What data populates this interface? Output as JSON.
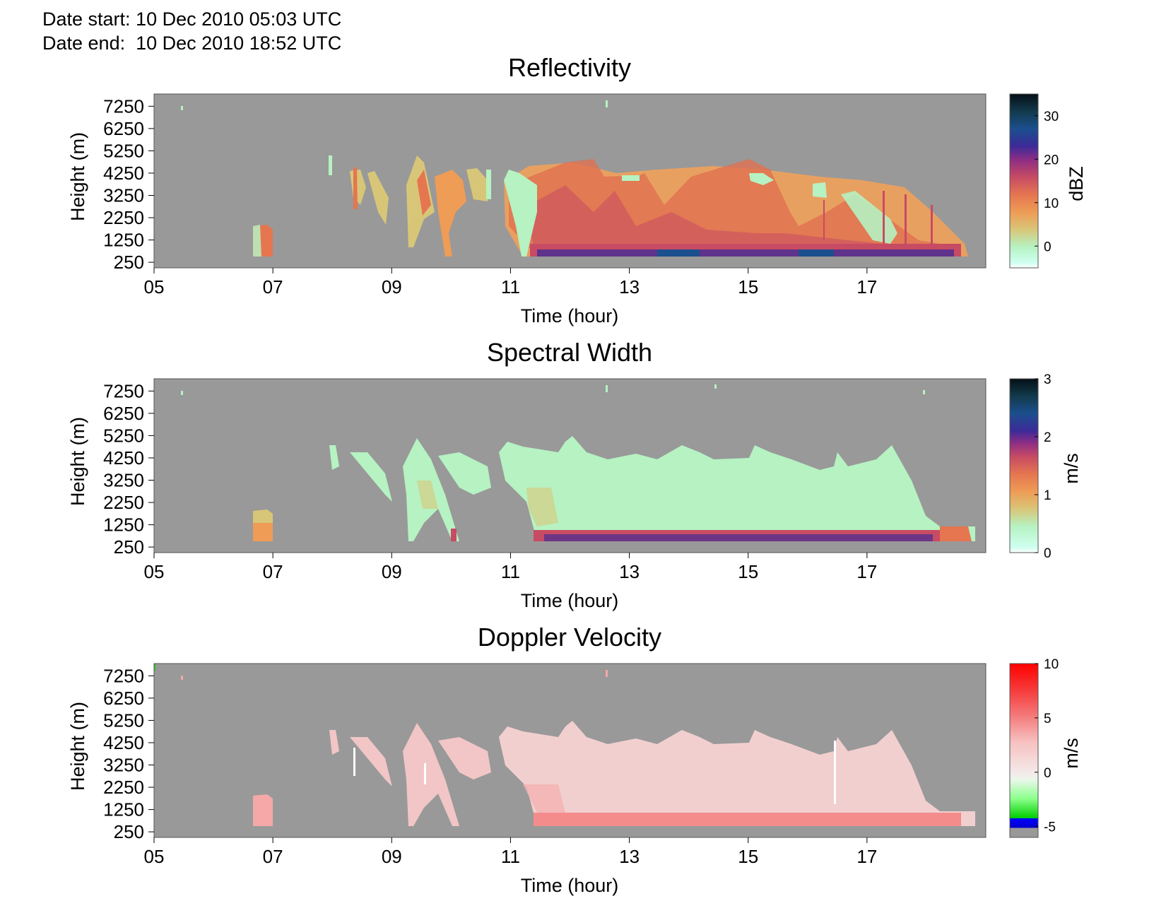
{
  "header": {
    "date_start": "Date start: 10 Dec 2010 05:03 UTC",
    "date_end": "Date end:  10 Dec 2010 18:52 UTC"
  },
  "chart_data": [
    {
      "type": "heatmap",
      "title": "Reflectivity",
      "xlabel": "Time (hour)",
      "ylabel": "Height (m)",
      "x_ticks": [
        "05",
        "07",
        "09",
        "11",
        "13",
        "15",
        "17"
      ],
      "xlim": [
        5,
        19
      ],
      "y_ticks": [
        "250",
        "1250",
        "2250",
        "3250",
        "4250",
        "5250",
        "6250",
        "7250"
      ],
      "ylim": [
        0,
        7800
      ],
      "colorbar": {
        "label": "dBZ",
        "ticks": [
          "0",
          "10",
          "20",
          "30"
        ],
        "range": [
          -5,
          35
        ]
      },
      "background_color": "#999999"
    },
    {
      "type": "heatmap",
      "title": "Spectral Width",
      "xlabel": "Time (hour)",
      "ylabel": "Height (m)",
      "x_ticks": [
        "05",
        "07",
        "09",
        "11",
        "13",
        "15",
        "17"
      ],
      "xlim": [
        5,
        19
      ],
      "y_ticks": [
        "250",
        "1250",
        "2250",
        "3250",
        "4250",
        "5250",
        "6250",
        "7250"
      ],
      "ylim": [
        0,
        7800
      ],
      "colorbar": {
        "label": "m/s",
        "ticks": [
          "0",
          "1",
          "2",
          "3"
        ],
        "range": [
          0,
          3
        ]
      },
      "background_color": "#999999"
    },
    {
      "type": "heatmap",
      "title": "Doppler Velocity",
      "xlabel": "Time (hour)",
      "ylabel": "Height (m)",
      "x_ticks": [
        "05",
        "07",
        "09",
        "11",
        "13",
        "15",
        "17"
      ],
      "xlim": [
        5,
        19
      ],
      "y_ticks": [
        "250",
        "1250",
        "2250",
        "3250",
        "4250",
        "5250",
        "6250",
        "7250"
      ],
      "ylim": [
        0,
        7800
      ],
      "colorbar": {
        "label": "m/s",
        "ticks": [
          "-5",
          "0",
          "5",
          "10"
        ],
        "range": [
          -6,
          10
        ]
      },
      "background_color": "#999999"
    }
  ]
}
